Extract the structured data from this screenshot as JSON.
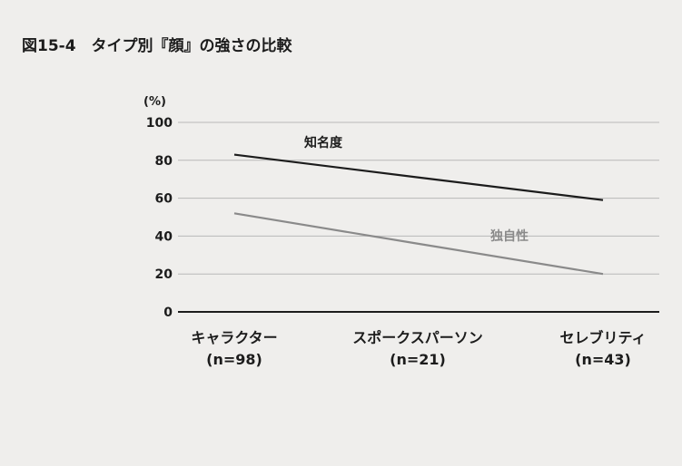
{
  "chart_data": {
    "type": "line",
    "title": "図15-4　タイプ別『顔』の強さの比較",
    "ylabel": "(%)",
    "xlabel": "",
    "ylim": [
      0,
      100
    ],
    "yticks": [
      "0",
      "20",
      "40",
      "60",
      "80",
      "100"
    ],
    "grid": true,
    "categories": [
      {
        "name": "キャラクター",
        "n": "(n=98)"
      },
      {
        "name": "スポークスパーソン",
        "n": "(n=21)"
      },
      {
        "name": "セレブリティ",
        "n": "(n=43)"
      }
    ],
    "series": [
      {
        "name": "知名度",
        "values": [
          83,
          71,
          59
        ],
        "color": "#1c1c1c"
      },
      {
        "name": "独自性",
        "values": [
          52,
          36,
          20
        ],
        "color": "#8a8a8a"
      }
    ]
  }
}
